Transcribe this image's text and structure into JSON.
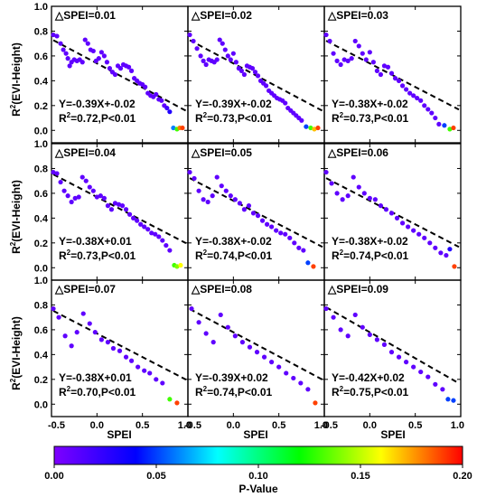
{
  "chart_data": [
    {
      "type": "scatter",
      "panel_label": "△SPEI=0.01",
      "equation": "Y=-0.39X+-0.02",
      "r2_text": "=0.72,P<0.01",
      "fit": {
        "slope": -0.39,
        "intercept": -0.02
      },
      "x": [
        -0.48,
        -0.44,
        -0.4,
        -0.37,
        -0.34,
        -0.32,
        -0.3,
        -0.28,
        -0.25,
        -0.22,
        -0.19,
        -0.16,
        -0.13,
        -0.1,
        -0.07,
        -0.04,
        -0.01,
        0.02,
        0.05,
        0.08,
        0.11,
        0.14,
        0.17,
        0.2,
        0.23,
        0.26,
        0.29,
        0.32,
        0.35,
        0.38,
        0.41,
        0.44,
        0.47,
        0.5,
        0.53,
        0.56,
        0.59,
        0.62,
        0.65,
        0.68,
        0.71,
        0.74,
        0.77,
        0.8,
        0.84,
        0.88,
        0.91,
        0.94
      ],
      "y": [
        0.77,
        0.76,
        0.7,
        0.65,
        0.62,
        0.58,
        0.52,
        0.55,
        0.57,
        0.56,
        0.57,
        0.55,
        0.73,
        0.7,
        0.65,
        0.64,
        0.56,
        0.58,
        0.63,
        0.6,
        0.55,
        0.5,
        0.47,
        0.45,
        0.52,
        0.5,
        0.53,
        0.52,
        0.51,
        0.48,
        0.42,
        0.4,
        0.38,
        0.37,
        0.35,
        0.3,
        0.28,
        0.27,
        0.29,
        0.25,
        0.24,
        0.2,
        0.18,
        0.15,
        0.02,
        0.01,
        0.02,
        0.02
      ],
      "p": [
        0.01,
        0.01,
        0.01,
        0.01,
        0.01,
        0.01,
        0.01,
        0.01,
        0.01,
        0.01,
        0.01,
        0.01,
        0.01,
        0.01,
        0.01,
        0.01,
        0.01,
        0.01,
        0.01,
        0.01,
        0.01,
        0.01,
        0.01,
        0.01,
        0.01,
        0.01,
        0.01,
        0.01,
        0.01,
        0.01,
        0.01,
        0.01,
        0.01,
        0.01,
        0.01,
        0.01,
        0.01,
        0.01,
        0.01,
        0.01,
        0.01,
        0.01,
        0.02,
        0.03,
        0.06,
        0.13,
        0.18,
        0.19
      ]
    },
    {
      "type": "scatter",
      "panel_label": "△SPEI=0.02",
      "equation": "Y=-0.39X+-0.02",
      "r2_text": "=0.73,P<0.01",
      "fit": {
        "slope": -0.39,
        "intercept": -0.02
      },
      "x": [
        -0.48,
        -0.44,
        -0.4,
        -0.36,
        -0.33,
        -0.3,
        -0.27,
        -0.24,
        -0.21,
        -0.18,
        -0.15,
        -0.12,
        -0.09,
        -0.06,
        -0.03,
        0.0,
        0.03,
        0.06,
        0.09,
        0.12,
        0.15,
        0.18,
        0.21,
        0.24,
        0.27,
        0.3,
        0.33,
        0.36,
        0.39,
        0.42,
        0.45,
        0.48,
        0.51,
        0.54,
        0.57,
        0.6,
        0.63,
        0.66,
        0.69,
        0.72,
        0.75,
        0.8,
        0.85,
        0.89,
        0.93
      ],
      "y": [
        0.77,
        0.72,
        0.66,
        0.6,
        0.56,
        0.53,
        0.57,
        0.56,
        0.55,
        0.57,
        0.73,
        0.7,
        0.65,
        0.6,
        0.57,
        0.62,
        0.55,
        0.5,
        0.48,
        0.45,
        0.52,
        0.51,
        0.5,
        0.47,
        0.44,
        0.4,
        0.38,
        0.36,
        0.32,
        0.3,
        0.28,
        0.26,
        0.25,
        0.24,
        0.22,
        0.18,
        0.16,
        0.14,
        0.12,
        0.1,
        0.08,
        0.03,
        0.02,
        0.01,
        0.02
      ],
      "p": [
        0.01,
        0.01,
        0.01,
        0.01,
        0.01,
        0.01,
        0.01,
        0.01,
        0.01,
        0.01,
        0.01,
        0.01,
        0.01,
        0.01,
        0.01,
        0.01,
        0.01,
        0.01,
        0.01,
        0.01,
        0.01,
        0.01,
        0.01,
        0.01,
        0.01,
        0.01,
        0.01,
        0.01,
        0.01,
        0.01,
        0.01,
        0.01,
        0.01,
        0.01,
        0.01,
        0.01,
        0.01,
        0.01,
        0.01,
        0.01,
        0.01,
        0.05,
        0.13,
        0.17,
        0.19
      ]
    },
    {
      "type": "scatter",
      "panel_label": "△SPEI=0.03",
      "equation": "Y=-0.38X+-0.02",
      "r2_text": "=0.73,P<0.01",
      "fit": {
        "slope": -0.38,
        "intercept": -0.02
      },
      "x": [
        -0.48,
        -0.44,
        -0.4,
        -0.36,
        -0.32,
        -0.28,
        -0.24,
        -0.2,
        -0.16,
        -0.12,
        -0.08,
        -0.04,
        0.0,
        0.04,
        0.08,
        0.12,
        0.16,
        0.2,
        0.24,
        0.28,
        0.32,
        0.36,
        0.4,
        0.44,
        0.48,
        0.52,
        0.56,
        0.6,
        0.64,
        0.68,
        0.72,
        0.76,
        0.82,
        0.88,
        0.92
      ],
      "y": [
        0.77,
        0.72,
        0.62,
        0.56,
        0.53,
        0.57,
        0.56,
        0.58,
        0.72,
        0.68,
        0.62,
        0.57,
        0.63,
        0.55,
        0.48,
        0.45,
        0.52,
        0.51,
        0.46,
        0.42,
        0.4,
        0.36,
        0.33,
        0.3,
        0.28,
        0.26,
        0.24,
        0.2,
        0.17,
        0.14,
        0.1,
        0.05,
        0.04,
        0.01,
        0.02
      ],
      "p": [
        0.01,
        0.01,
        0.01,
        0.01,
        0.01,
        0.01,
        0.01,
        0.01,
        0.01,
        0.01,
        0.01,
        0.01,
        0.01,
        0.01,
        0.01,
        0.01,
        0.01,
        0.01,
        0.01,
        0.01,
        0.01,
        0.01,
        0.01,
        0.01,
        0.01,
        0.01,
        0.01,
        0.01,
        0.01,
        0.01,
        0.01,
        0.01,
        0.05,
        0.13,
        0.19
      ]
    },
    {
      "type": "scatter",
      "panel_label": "△SPEI=0.04",
      "equation": "Y=-0.38X+0.01",
      "r2_text": "=0.73,P<0.01",
      "fit": {
        "slope": -0.38,
        "intercept": 0.01
      },
      "x": [
        -0.48,
        -0.44,
        -0.4,
        -0.36,
        -0.32,
        -0.28,
        -0.24,
        -0.2,
        -0.16,
        -0.12,
        -0.08,
        -0.04,
        0.0,
        0.04,
        0.08,
        0.12,
        0.16,
        0.2,
        0.24,
        0.28,
        0.32,
        0.36,
        0.4,
        0.44,
        0.48,
        0.52,
        0.56,
        0.6,
        0.64,
        0.68,
        0.72,
        0.76,
        0.8,
        0.85,
        0.88,
        0.92
      ],
      "y": [
        0.77,
        0.76,
        0.69,
        0.62,
        0.58,
        0.53,
        0.56,
        0.57,
        0.73,
        0.7,
        0.65,
        0.62,
        0.57,
        0.58,
        0.56,
        0.5,
        0.47,
        0.52,
        0.51,
        0.5,
        0.47,
        0.43,
        0.4,
        0.38,
        0.35,
        0.33,
        0.31,
        0.28,
        0.27,
        0.25,
        0.22,
        0.18,
        0.14,
        0.02,
        0.01,
        0.02
      ],
      "p": [
        0.01,
        0.01,
        0.01,
        0.01,
        0.01,
        0.01,
        0.01,
        0.01,
        0.01,
        0.01,
        0.01,
        0.01,
        0.01,
        0.01,
        0.01,
        0.01,
        0.01,
        0.01,
        0.01,
        0.01,
        0.01,
        0.01,
        0.01,
        0.01,
        0.01,
        0.01,
        0.01,
        0.01,
        0.01,
        0.01,
        0.01,
        0.01,
        0.01,
        0.13,
        0.14,
        0.16
      ]
    },
    {
      "type": "scatter",
      "panel_label": "△SPEI=0.05",
      "equation": "Y=-0.38X+-0.02",
      "r2_text": "=0.74,P<0.01",
      "fit": {
        "slope": -0.38,
        "intercept": -0.02
      },
      "x": [
        -0.48,
        -0.43,
        -0.38,
        -0.33,
        -0.28,
        -0.23,
        -0.18,
        -0.13,
        -0.08,
        -0.03,
        0.02,
        0.07,
        0.12,
        0.17,
        0.22,
        0.27,
        0.32,
        0.37,
        0.42,
        0.47,
        0.52,
        0.57,
        0.62,
        0.67,
        0.72,
        0.77,
        0.82,
        0.88
      ],
      "y": [
        0.77,
        0.72,
        0.62,
        0.55,
        0.53,
        0.58,
        0.73,
        0.66,
        0.62,
        0.58,
        0.55,
        0.52,
        0.47,
        0.5,
        0.44,
        0.42,
        0.38,
        0.35,
        0.33,
        0.3,
        0.28,
        0.27,
        0.24,
        0.2,
        0.16,
        0.14,
        0.04,
        0.01
      ],
      "p": [
        0.01,
        0.01,
        0.01,
        0.01,
        0.01,
        0.01,
        0.01,
        0.01,
        0.01,
        0.01,
        0.01,
        0.01,
        0.01,
        0.01,
        0.01,
        0.01,
        0.01,
        0.01,
        0.01,
        0.01,
        0.01,
        0.01,
        0.01,
        0.01,
        0.01,
        0.01,
        0.05,
        0.19
      ]
    },
    {
      "type": "scatter",
      "panel_label": "△SPEI=0.06",
      "equation": "Y=-0.38X+-0.02",
      "r2_text": "=0.74,P<0.01",
      "fit": {
        "slope": -0.38,
        "intercept": -0.02
      },
      "x": [
        -0.48,
        -0.42,
        -0.36,
        -0.3,
        -0.24,
        -0.18,
        -0.12,
        -0.06,
        0.0,
        0.06,
        0.12,
        0.18,
        0.24,
        0.3,
        0.36,
        0.42,
        0.48,
        0.54,
        0.6,
        0.66,
        0.72,
        0.78,
        0.84,
        0.88,
        0.93
      ],
      "y": [
        0.77,
        0.68,
        0.6,
        0.55,
        0.58,
        0.73,
        0.65,
        0.6,
        0.56,
        0.55,
        0.5,
        0.47,
        0.44,
        0.4,
        0.36,
        0.33,
        0.3,
        0.27,
        0.24,
        0.2,
        0.16,
        0.12,
        0.1,
        0.15,
        0.01
      ],
      "p": [
        0.01,
        0.01,
        0.01,
        0.01,
        0.01,
        0.01,
        0.01,
        0.01,
        0.01,
        0.01,
        0.01,
        0.01,
        0.01,
        0.01,
        0.01,
        0.01,
        0.01,
        0.01,
        0.01,
        0.01,
        0.01,
        0.01,
        0.01,
        0.03,
        0.19
      ]
    },
    {
      "type": "scatter",
      "panel_label": "△SPEI=0.07",
      "equation": "Y=-0.38X+0.01",
      "r2_text": "=0.70,P<0.01",
      "fit": {
        "slope": -0.38,
        "intercept": 0.01
      },
      "x": [
        -0.48,
        -0.42,
        -0.35,
        -0.28,
        -0.22,
        -0.15,
        -0.08,
        -0.02,
        0.05,
        0.12,
        0.18,
        0.25,
        0.32,
        0.38,
        0.45,
        0.52,
        0.58,
        0.65,
        0.72,
        0.8,
        0.88
      ],
      "y": [
        0.77,
        0.7,
        0.55,
        0.47,
        0.58,
        0.73,
        0.65,
        0.58,
        0.52,
        0.5,
        0.45,
        0.43,
        0.38,
        0.35,
        0.3,
        0.27,
        0.25,
        0.2,
        0.17,
        0.04,
        0.01
      ],
      "p": [
        0.01,
        0.01,
        0.01,
        0.01,
        0.01,
        0.01,
        0.01,
        0.01,
        0.01,
        0.01,
        0.01,
        0.01,
        0.01,
        0.01,
        0.01,
        0.01,
        0.01,
        0.01,
        0.01,
        0.13,
        0.19
      ]
    },
    {
      "type": "scatter",
      "panel_label": "△SPEI=0.08",
      "equation": "Y=-0.39X+0.02",
      "r2_text": "=0.74,P<0.01",
      "fit": {
        "slope": -0.39,
        "intercept": 0.02
      },
      "x": [
        -0.46,
        -0.38,
        -0.3,
        -0.22,
        -0.14,
        -0.06,
        0.02,
        0.1,
        0.18,
        0.26,
        0.34,
        0.42,
        0.5,
        0.58,
        0.66,
        0.74,
        0.82,
        0.9
      ],
      "y": [
        0.77,
        0.66,
        0.57,
        0.5,
        0.72,
        0.62,
        0.55,
        0.5,
        0.46,
        0.42,
        0.38,
        0.34,
        0.3,
        0.25,
        0.21,
        0.17,
        0.12,
        0.01
      ],
      "p": [
        0.01,
        0.01,
        0.01,
        0.01,
        0.01,
        0.01,
        0.01,
        0.01,
        0.01,
        0.01,
        0.01,
        0.01,
        0.01,
        0.01,
        0.01,
        0.01,
        0.01,
        0.19
      ]
    },
    {
      "type": "scatter",
      "panel_label": "△SPEI=0.09",
      "equation": "Y=-0.42X+0.02",
      "r2_text": "=0.75,P<0.01",
      "fit": {
        "slope": -0.42,
        "intercept": 0.02
      },
      "x": [
        -0.48,
        -0.4,
        -0.32,
        -0.24,
        -0.16,
        -0.08,
        0.0,
        0.08,
        0.16,
        0.24,
        0.32,
        0.4,
        0.48,
        0.56,
        0.64,
        0.72,
        0.8,
        0.86,
        0.92
      ],
      "y": [
        0.77,
        0.7,
        0.6,
        0.55,
        0.72,
        0.62,
        0.56,
        0.52,
        0.48,
        0.42,
        0.38,
        0.34,
        0.3,
        0.26,
        0.22,
        0.16,
        0.12,
        0.04,
        0.03
      ],
      "p": [
        0.01,
        0.01,
        0.01,
        0.01,
        0.01,
        0.01,
        0.01,
        0.01,
        0.01,
        0.01,
        0.01,
        0.01,
        0.01,
        0.01,
        0.01,
        0.01,
        0.01,
        0.05,
        0.05
      ]
    }
  ],
  "axes": {
    "xlabel": "SPEI",
    "ylabel": "R²(EVI-Height)",
    "ylabel_base": "R",
    "ylabel_sup": "2",
    "ylabel_rest": "(EVI-Height)",
    "xlim": [
      -0.5,
      1.0
    ],
    "ylim": [
      -0.1,
      1.0
    ],
    "x_ticks": [
      "-0.5",
      "0.0",
      "0.5",
      "1.0"
    ],
    "y_ticks": [
      "0.0",
      "0.2",
      "0.4",
      "0.6",
      "0.8",
      "1.0"
    ],
    "x_tick_values": [
      -0.5,
      0.0,
      0.5,
      1.0
    ],
    "y_tick_values": [
      0.0,
      0.2,
      0.4,
      0.6,
      0.8,
      1.0
    ],
    "r2_prefix": "R",
    "r2_sup": "2"
  },
  "colorbar": {
    "label": "P-Value",
    "range": [
      0.0,
      0.2
    ],
    "ticks": [
      "0.00",
      "0.05",
      "0.10",
      "0.15",
      "0.20"
    ],
    "tick_values": [
      0.0,
      0.05,
      0.1,
      0.15,
      0.2
    ],
    "colormap": [
      "#7f00ff",
      "#3f00ff",
      "#0000ff",
      "#007fff",
      "#00ffff",
      "#00ff7f",
      "#00ff00",
      "#7fff00",
      "#ffff00",
      "#ff7f00",
      "#ff0000"
    ]
  },
  "colors": {
    "fit_line": "#000000",
    "frame": "#000000"
  }
}
